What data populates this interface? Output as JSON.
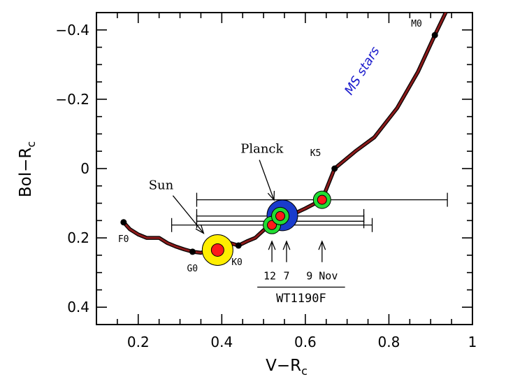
{
  "chart_data": {
    "type": "scatter",
    "xlabel": "V−R",
    "xlabel_sub": "c",
    "ylabel": "Bol−R",
    "ylabel_sub": "c",
    "xlim": [
      0.1,
      1.0
    ],
    "ylim": [
      0.45,
      -0.45
    ],
    "y_inverted": true,
    "grid": false,
    "x_ticks": [
      0.2,
      0.4,
      0.6,
      0.8,
      1.0
    ],
    "x_tick_labels": [
      "0.2",
      "0.4",
      "0.6",
      "0.8",
      "1"
    ],
    "y_ticks": [
      -0.4,
      -0.2,
      0,
      0.2,
      0.4
    ],
    "y_tick_labels": [
      "−0.4",
      "−0.2",
      "0",
      "0.2",
      "0.4"
    ],
    "x_minor_step": 0.05,
    "y_minor_step": 0.05,
    "main_sequence_curve": {
      "label": "MS stars",
      "color": "#8b1a1a",
      "points": [
        [
          0.165,
          0.155
        ],
        [
          0.18,
          0.175
        ],
        [
          0.2,
          0.19
        ],
        [
          0.22,
          0.2
        ],
        [
          0.25,
          0.2
        ],
        [
          0.27,
          0.215
        ],
        [
          0.29,
          0.225
        ],
        [
          0.31,
          0.233
        ],
        [
          0.33,
          0.24
        ],
        [
          0.35,
          0.243
        ],
        [
          0.38,
          0.233
        ],
        [
          0.4,
          0.22
        ],
        [
          0.42,
          0.215
        ],
        [
          0.44,
          0.222
        ],
        [
          0.46,
          0.21
        ],
        [
          0.48,
          0.2
        ],
        [
          0.5,
          0.178
        ],
        [
          0.52,
          0.162
        ],
        [
          0.54,
          0.148
        ],
        [
          0.57,
          0.132
        ],
        [
          0.6,
          0.115
        ],
        [
          0.64,
          0.09
        ],
        [
          0.67,
          0.0
        ],
        [
          0.72,
          -0.05
        ],
        [
          0.765,
          -0.09
        ],
        [
          0.82,
          -0.175
        ],
        [
          0.87,
          -0.28
        ],
        [
          0.91,
          -0.385
        ],
        [
          0.94,
          -0.46
        ]
      ]
    },
    "spectral_types": [
      {
        "label": "F0",
        "x": 0.165,
        "y": 0.155
      },
      {
        "label": "G0",
        "x": 0.33,
        "y": 0.24
      },
      {
        "label": "K0",
        "x": 0.44,
        "y": 0.222
      },
      {
        "label": "K5",
        "x": 0.67,
        "y": 0.0
      },
      {
        "label": "M0",
        "x": 0.91,
        "y": -0.385
      }
    ],
    "sun": {
      "label": "Sun",
      "x": 0.39,
      "y": 0.235
    },
    "planck": {
      "label": "Planck",
      "x": 0.545,
      "y": 0.135
    },
    "wt1190f": {
      "label": "WT1190F",
      "points": [
        {
          "date": "12",
          "x": 0.52,
          "y": 0.163,
          "xerr_low": 0.24,
          "xerr_high": 0.24
        },
        {
          "date": "7",
          "x": 0.54,
          "y": 0.137,
          "xerr_low": 0.2,
          "xerr_high": 0.2
        },
        {
          "date": "9 Nov",
          "x": 0.64,
          "y": 0.09,
          "xerr_low": 0.3,
          "xerr_high": 0.3
        }
      ]
    },
    "extra_error_bar": {
      "x_low": 0.34,
      "x_high": 0.74,
      "y": 0.152
    },
    "colors": {
      "curve": "#8b1a1a",
      "sun_outer": "#ffee00",
      "point_center": "#ff1a1a",
      "wt_ring": "#22dd33",
      "planck": "#1a3ccc",
      "ms_label": "#1a1acc"
    }
  }
}
